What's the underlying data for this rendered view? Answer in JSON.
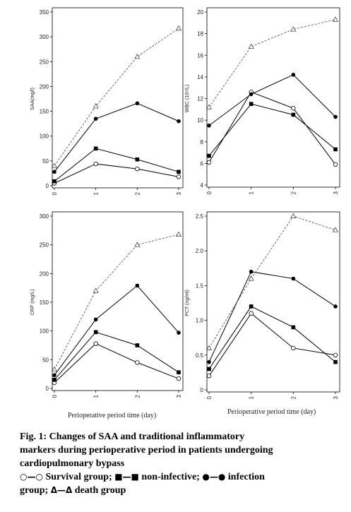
{
  "chart_data": [
    {
      "type": "line",
      "id": "saa",
      "ylabel": "SAA(mg/l)",
      "xlabel": "",
      "categories": [
        "0",
        "1",
        "2",
        "3"
      ],
      "ylim": [
        0,
        350
      ],
      "yticks": [
        0,
        50,
        100,
        150,
        200,
        250,
        300,
        350
      ],
      "series": [
        {
          "name": "Survival group",
          "marker": "open-circle",
          "dashed": false,
          "values": [
            5,
            44,
            34,
            18
          ]
        },
        {
          "name": "non-infective",
          "marker": "filled-square",
          "dashed": false,
          "values": [
            9,
            75,
            53,
            28
          ]
        },
        {
          "name": "infection group",
          "marker": "filled-circle",
          "dashed": false,
          "values": [
            28,
            135,
            166,
            130
          ]
        },
        {
          "name": "death group",
          "marker": "open-triangle",
          "dashed": true,
          "values": [
            40,
            160,
            260,
            317
          ]
        }
      ]
    },
    {
      "type": "line",
      "id": "wbc",
      "ylabel": "WBC (10⁹/L)",
      "xlabel": "",
      "categories": [
        "0",
        "1",
        "2",
        "3"
      ],
      "ylim": [
        4,
        20
      ],
      "yticks": [
        4,
        6,
        8,
        10,
        12,
        14,
        16,
        18,
        20
      ],
      "series": [
        {
          "name": "Survival group",
          "marker": "open-circle",
          "dashed": false,
          "values": [
            6.1,
            12.6,
            11.1,
            5.9
          ]
        },
        {
          "name": "non-infective",
          "marker": "filled-square",
          "dashed": false,
          "values": [
            6.7,
            11.5,
            10.5,
            7.3
          ]
        },
        {
          "name": "infection group",
          "marker": "filled-circle",
          "dashed": false,
          "values": [
            9.5,
            12.4,
            14.2,
            10.3
          ]
        },
        {
          "name": "death group",
          "marker": "open-triangle",
          "dashed": true,
          "values": [
            11.2,
            16.8,
            18.4,
            19.3
          ]
        }
      ]
    },
    {
      "type": "line",
      "id": "crp",
      "ylabel": "CRP (mg/L)",
      "xlabel": "Perioperative period time (day)",
      "categories": [
        "0",
        "1",
        "2",
        "3"
      ],
      "ylim": [
        0,
        300
      ],
      "yticks": [
        0,
        50,
        100,
        150,
        200,
        250,
        300
      ],
      "series": [
        {
          "name": "Survival group",
          "marker": "open-circle",
          "dashed": false,
          "values": [
            10,
            78,
            45,
            17
          ]
        },
        {
          "name": "non-infective",
          "marker": "filled-square",
          "dashed": false,
          "values": [
            15,
            98,
            75,
            28
          ]
        },
        {
          "name": "infection group",
          "marker": "filled-circle",
          "dashed": false,
          "values": [
            23,
            120,
            179,
            97
          ]
        },
        {
          "name": "death group",
          "marker": "open-triangle",
          "dashed": true,
          "values": [
            33,
            170,
            250,
            268
          ]
        }
      ]
    },
    {
      "type": "line",
      "id": "pct",
      "ylabel": "PCT (ng/ml)",
      "xlabel": "Perioperative period time (day)",
      "categories": [
        "0",
        "1",
        "2",
        "3"
      ],
      "ylim": [
        0,
        2.5
      ],
      "yticks": [
        0,
        0.5,
        1.0,
        1.5,
        2.0,
        2.5
      ],
      "series": [
        {
          "name": "Survival group",
          "marker": "open-circle",
          "dashed": false,
          "values": [
            0.2,
            1.1,
            0.6,
            0.5
          ]
        },
        {
          "name": "non-infective",
          "marker": "filled-square",
          "dashed": false,
          "values": [
            0.3,
            1.2,
            0.9,
            0.4
          ]
        },
        {
          "name": "infection group",
          "marker": "filled-circle",
          "dashed": false,
          "values": [
            0.4,
            1.7,
            1.6,
            1.2
          ]
        },
        {
          "name": "death group",
          "marker": "open-triangle",
          "dashed": true,
          "values": [
            0.6,
            1.6,
            2.5,
            2.3
          ]
        }
      ]
    }
  ],
  "caption": {
    "line1": "Fig. 1: Changes of SAA and traditional inflammatory",
    "line2": "markers during perioperative period in patients undergoing",
    "line3": "cardiopulmonary bypass",
    "legend_survival_key": "○—○",
    "legend_survival": " Survival group; ",
    "legend_noninf_key": "■—■",
    "legend_noninf": " non-infective; ",
    "legend_infection_key": "●—●",
    "legend_infection_a": " infection",
    "legend_infection_b": "group; ",
    "legend_death_key": "Δ—Δ",
    "legend_death": " death group"
  }
}
